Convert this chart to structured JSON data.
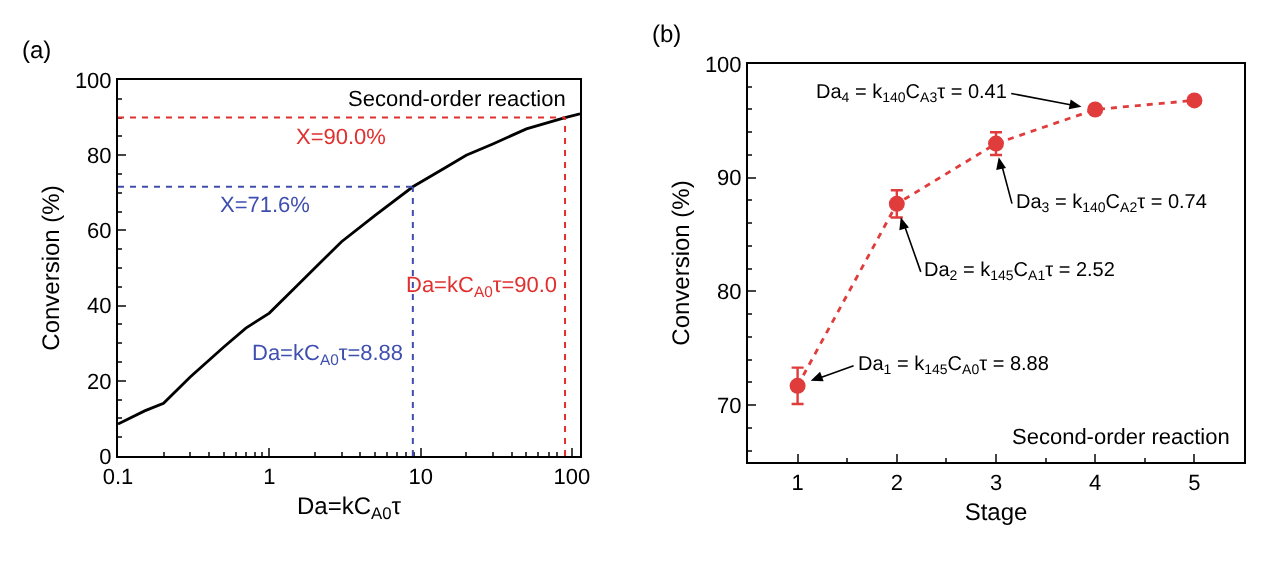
{
  "chart_data": [
    {
      "type": "line",
      "xlabel": "Da=kC$_{A0}$τ",
      "ylabel": "Conversion (%)",
      "log": "x",
      "xlim": [
        0.1,
        113
      ],
      "xticks": [
        0.1,
        1,
        10,
        100
      ],
      "ylim": [
        0,
        100
      ],
      "yticks": [
        0,
        20,
        40,
        60,
        80,
        100
      ],
      "grid": false,
      "line_style": "solid",
      "marker": "none",
      "series": [
        {
          "color": "#000000",
          "x": [
            0.1,
            0.15,
            0.2,
            0.3,
            0.5,
            0.7,
            1,
            1.5,
            2,
            3,
            5,
            8.88,
            15,
            20,
            30,
            50,
            90,
            113
          ],
          "values": [
            8.5,
            12,
            14,
            21,
            29,
            34,
            38,
            45,
            50,
            57,
            64,
            71.6,
            77,
            80,
            83,
            87,
            90,
            91
          ]
        }
      ],
      "ref_lines": [
        {
          "axis": "y",
          "value": 90.0,
          "label": "X=90.0%",
          "color": "#e03030",
          "line_style": "dotted"
        },
        {
          "axis": "y",
          "value": 71.6,
          "label": "X=71.6%",
          "color": "#3f4fb0",
          "line_style": "dotted"
        },
        {
          "axis": "x",
          "value": 90.0,
          "label": "Da=kC$_{A0}$τ=90.0",
          "color": "#e03030",
          "line_style": "dotted"
        },
        {
          "axis": "x",
          "value": 8.88,
          "label": "Da=kC$_{A0}$τ=8.88",
          "color": "#3f4fb0",
          "line_style": "dotted"
        }
      ],
      "annotations": [
        "(a)",
        "Second-order reaction"
      ]
    },
    {
      "type": "line",
      "xlabel": "Stage",
      "ylabel": "Conversion (%)",
      "x": [
        1,
        2,
        3,
        4,
        5
      ],
      "xlim": [
        0.5,
        5.5
      ],
      "xticks": [
        1,
        2,
        3,
        4,
        5
      ],
      "ylim": [
        65,
        100
      ],
      "yticks": [
        70,
        80,
        90,
        100
      ],
      "grid": false,
      "line_style": "dotted",
      "marker": "circle",
      "series": [
        {
          "color": "#e03c3c",
          "values": [
            71.7,
            87.7,
            93.0,
            96.0,
            96.8
          ],
          "errors": [
            1.6,
            1.2,
            1.0,
            null,
            null
          ]
        }
      ],
      "annotations": [
        "(b)",
        "Second-order reaction",
        {
          "text": "Da$_{1}$ = k$_{145}$C$_{A0}$τ = 8.88",
          "x": 1,
          "y": 71.7
        },
        {
          "text": "Da$_{2}$ = k$_{145}$C$_{A1}$τ = 2.52",
          "x": 2,
          "y": 87.7
        },
        {
          "text": "Da$_{3}$ = k$_{140}$C$_{A2}$τ = 0.74",
          "x": 3,
          "y": 93.0
        },
        {
          "text": "Da$_{4}$ = k$_{140}$C$_{A3}$τ = 0.41",
          "x": 4,
          "y": 96.0
        }
      ]
    }
  ]
}
